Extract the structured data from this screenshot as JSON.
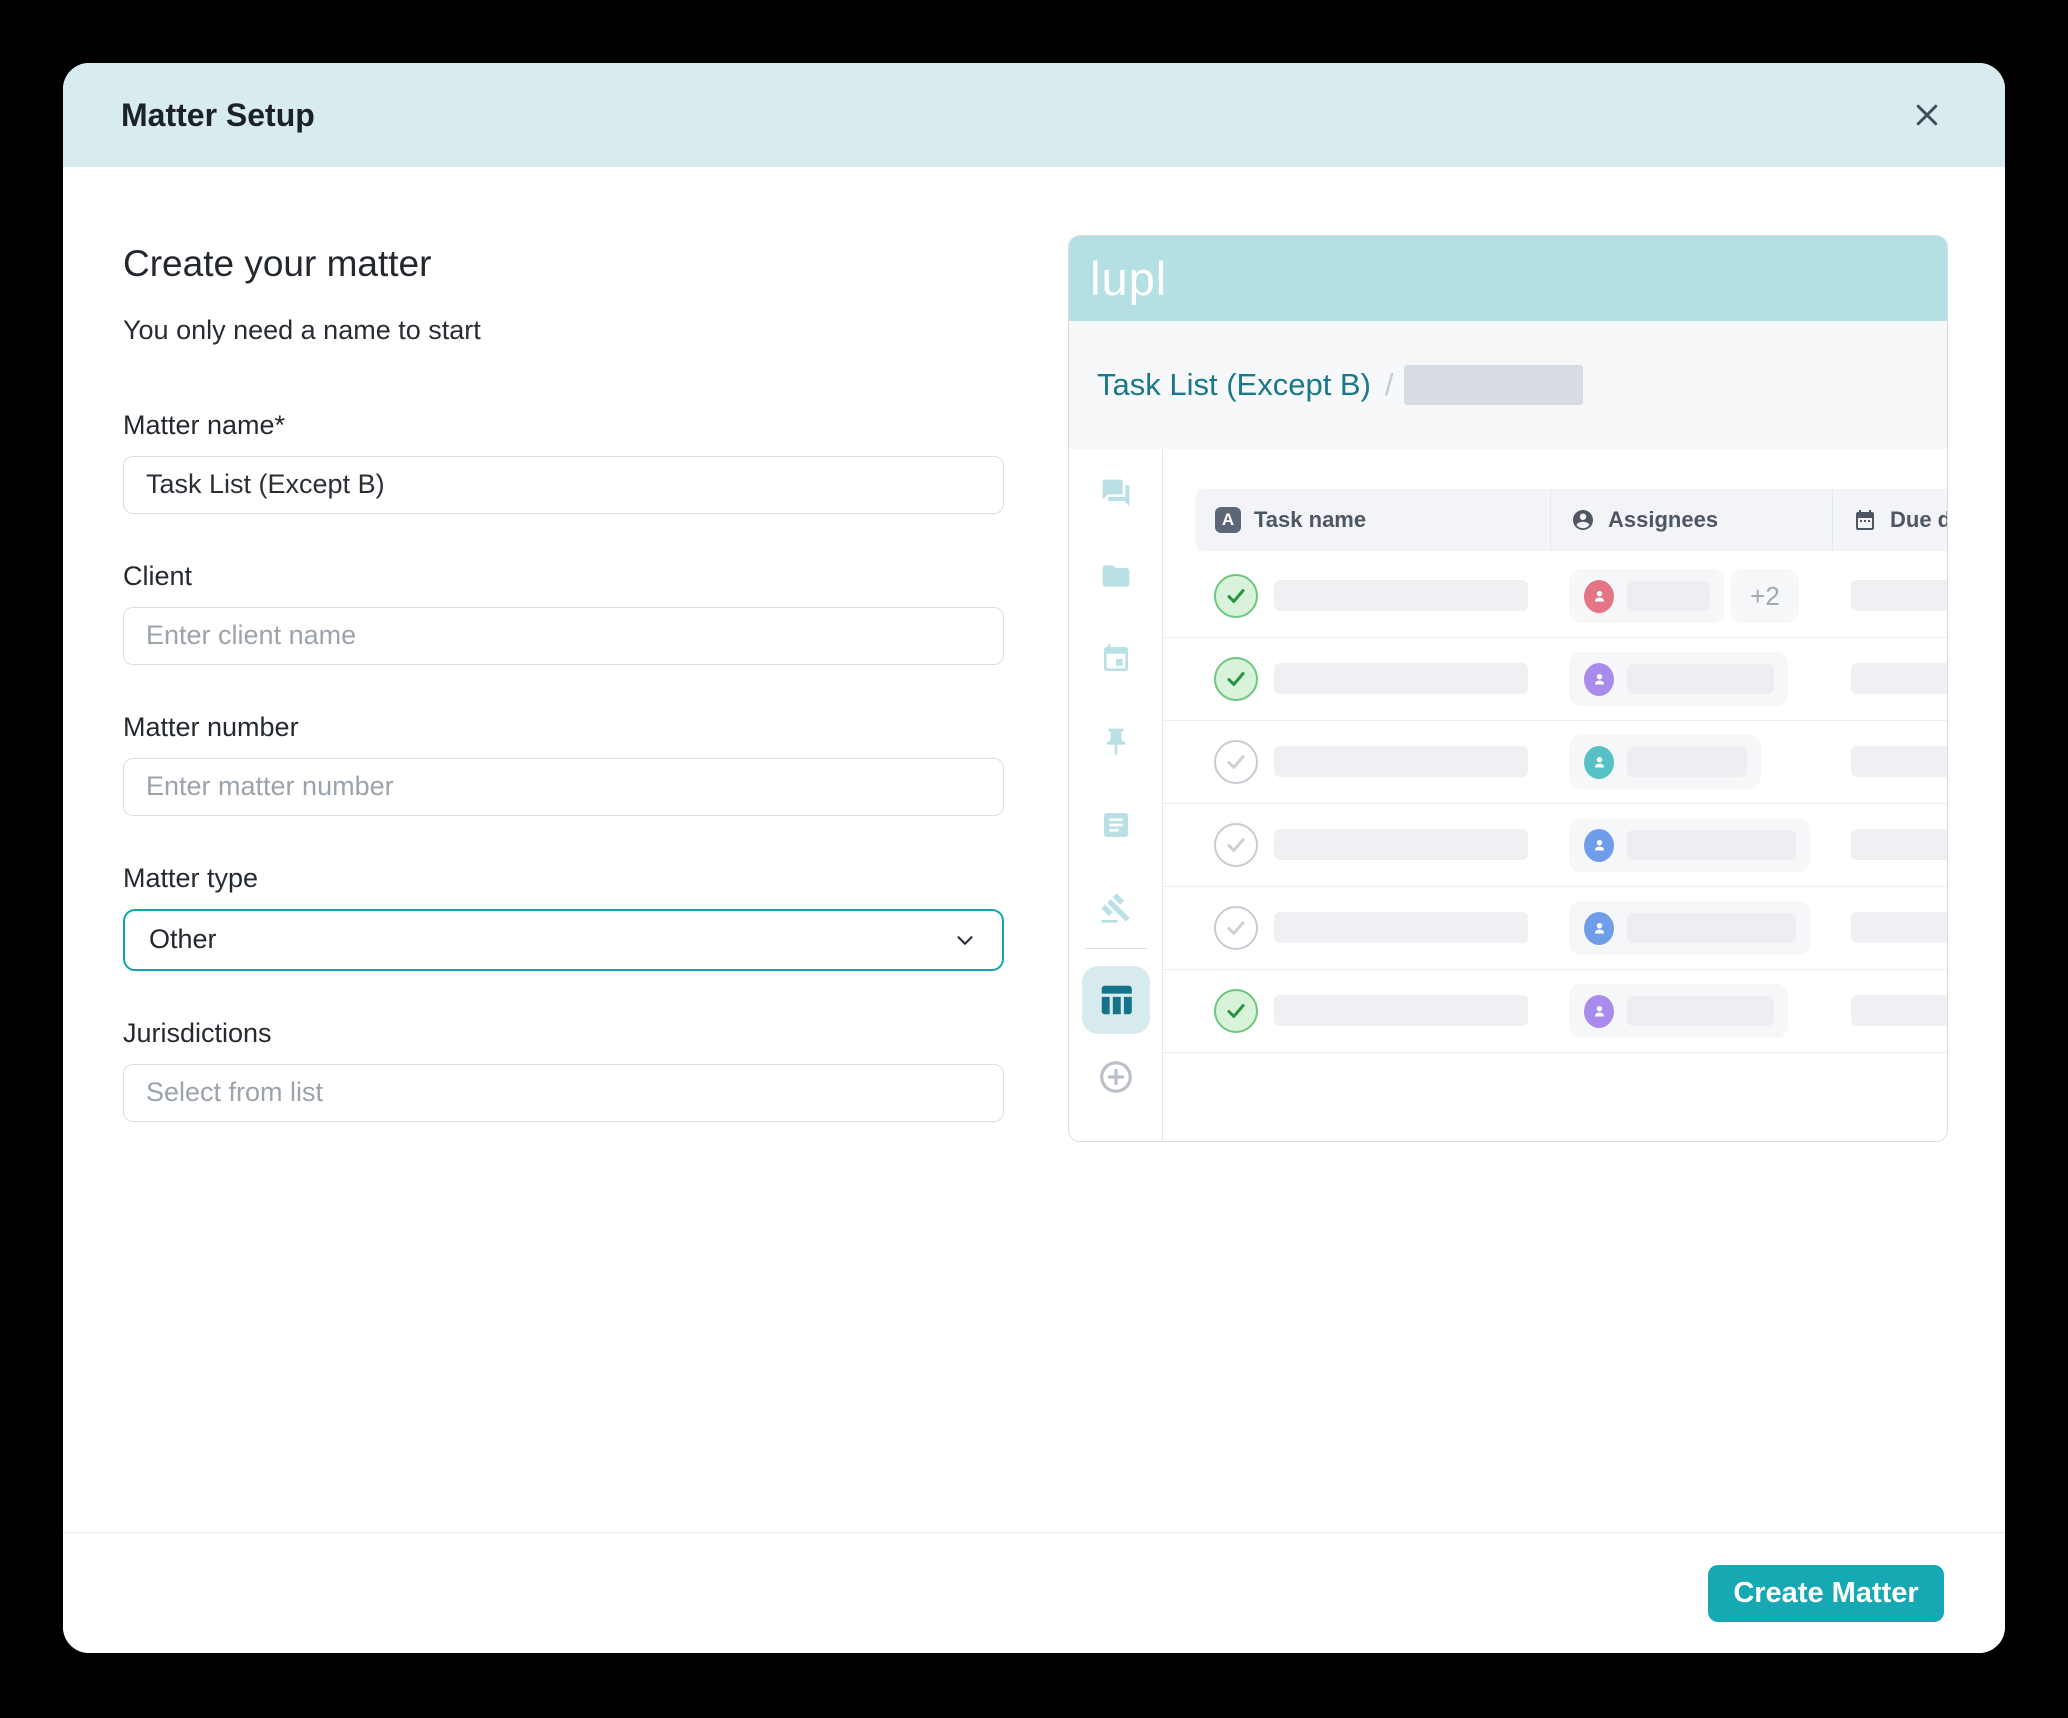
{
  "modal": {
    "title": "Matter Setup",
    "form": {
      "heading": "Create your matter",
      "subheading": "You only need a name to start",
      "fields": [
        {
          "label": "Matter name*",
          "type": "text",
          "value": "Task List (Except B)",
          "placeholder": ""
        },
        {
          "label": "Client",
          "type": "text",
          "value": "",
          "placeholder": "Enter client name"
        },
        {
          "label": "Matter number",
          "type": "text",
          "value": "",
          "placeholder": "Enter matter number"
        },
        {
          "label": "Matter type",
          "type": "select",
          "value": "Other"
        },
        {
          "label": "Jurisdictions",
          "type": "text",
          "value": "",
          "placeholder": "Select from list"
        }
      ]
    },
    "footer": {
      "create_button_label": "Create Matter"
    }
  },
  "preview": {
    "brand": "lupl",
    "breadcrumb": {
      "current": "Task List (Except B)",
      "separator": "/"
    },
    "sidebar": {
      "icons": [
        "chat-icon",
        "folder-icon",
        "calendar-icon",
        "pin-icon",
        "notes-icon",
        "gavel-icon",
        "table-icon",
        "add-icon"
      ],
      "active_icon": "table-icon"
    },
    "table": {
      "columns": [
        {
          "label": "Task name",
          "icon": "text-field-icon"
        },
        {
          "label": "Assignees",
          "icon": "person-icon"
        },
        {
          "label": "Due d",
          "icon": "calendar-icon"
        }
      ],
      "rows": [
        {
          "checked": true,
          "avatar_color": "#e57584",
          "chip_width": 155,
          "extra_badge": "+2"
        },
        {
          "checked": true,
          "avatar_color": "#a98bee",
          "chip_width": 219,
          "extra_badge": null
        },
        {
          "checked": false,
          "avatar_color": "#57c2c6",
          "chip_width": 192,
          "extra_badge": null
        },
        {
          "checked": false,
          "avatar_color": "#6f9de9",
          "chip_width": 241,
          "extra_badge": null
        },
        {
          "checked": false,
          "avatar_color": "#6f9de9",
          "chip_width": 241,
          "extra_badge": null
        },
        {
          "checked": true,
          "avatar_color": "#a98bee",
          "chip_width": 219,
          "extra_badge": null
        }
      ]
    }
  },
  "colors": {
    "accent_teal": "#16a9b4",
    "select_focus_border": "#0ea7b1",
    "modal_header_bg": "#d8ecf0",
    "preview_header_bg": "#b5e0e3",
    "breadcrumb_teal": "#19798b",
    "check_green": "#2a9440",
    "sidebar_icon_teal": "#b9e1e5",
    "active_sidebar_icon": "#15748a"
  }
}
